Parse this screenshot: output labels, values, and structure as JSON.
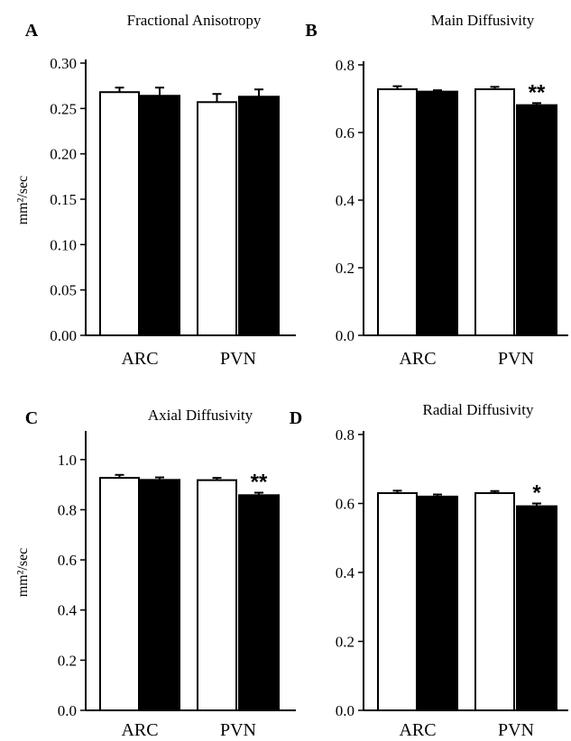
{
  "figure": {
    "units_label": "mm²/sec"
  },
  "chart_data": [
    {
      "type": "bar",
      "panel_label": "A",
      "title": "Fractional Anisotropy",
      "ylabel": "mm²/sec",
      "categories": [
        "ARC",
        "PVN"
      ],
      "ylim": [
        0,
        0.3
      ],
      "yticks": [
        "0.00",
        "0.05",
        "0.10",
        "0.15",
        "0.20",
        "0.25",
        "0.30"
      ],
      "series": [
        {
          "fill": "#ffffff",
          "values": [
            0.268,
            0.257
          ],
          "errors": [
            0.005,
            0.009
          ]
        },
        {
          "fill": "#000000",
          "values": [
            0.264,
            0.263
          ],
          "errors": [
            0.009,
            0.008
          ]
        }
      ],
      "annotations": [
        "",
        ""
      ],
      "grid": false
    },
    {
      "type": "bar",
      "panel_label": "B",
      "title": "Main Diffusivity",
      "ylabel": "",
      "categories": [
        "ARC",
        "PVN"
      ],
      "ylim": [
        0,
        0.8
      ],
      "yticks": [
        "0.0",
        "0.2",
        "0.4",
        "0.6",
        "0.8"
      ],
      "series": [
        {
          "fill": "#ffffff",
          "values": [
            0.728,
            0.728
          ],
          "errors": [
            0.009,
            0.007
          ]
        },
        {
          "fill": "#000000",
          "values": [
            0.721,
            0.681
          ],
          "errors": [
            0.004,
            0.006
          ]
        }
      ],
      "annotations": [
        "",
        "**"
      ],
      "grid": false
    },
    {
      "type": "bar",
      "panel_label": "C",
      "title": "Axial Diffusivity",
      "ylabel": "mm²/sec",
      "categories": [
        "ARC",
        "PVN"
      ],
      "ylim": [
        0,
        1.1
      ],
      "yticks": [
        "0.0",
        "0.2",
        "0.4",
        "0.6",
        "0.8",
        "1.0"
      ],
      "series": [
        {
          "fill": "#ffffff",
          "values": [
            0.927,
            0.918
          ],
          "errors": [
            0.012,
            0.009
          ]
        },
        {
          "fill": "#000000",
          "values": [
            0.919,
            0.858
          ],
          "errors": [
            0.01,
            0.01
          ]
        }
      ],
      "annotations": [
        "",
        "**"
      ],
      "grid": false
    },
    {
      "type": "bar",
      "panel_label": "D",
      "title": "Radial Diffusivity",
      "ylabel": "",
      "categories": [
        "ARC",
        "PVN"
      ],
      "ylim": [
        0,
        0.8
      ],
      "yticks": [
        "0.0",
        "0.2",
        "0.4",
        "0.6",
        "0.8"
      ],
      "series": [
        {
          "fill": "#ffffff",
          "values": [
            0.63,
            0.63
          ],
          "errors": [
            0.007,
            0.006
          ]
        },
        {
          "fill": "#000000",
          "values": [
            0.62,
            0.592
          ],
          "errors": [
            0.006,
            0.008
          ]
        }
      ],
      "annotations": [
        "",
        "*"
      ],
      "grid": false
    }
  ]
}
